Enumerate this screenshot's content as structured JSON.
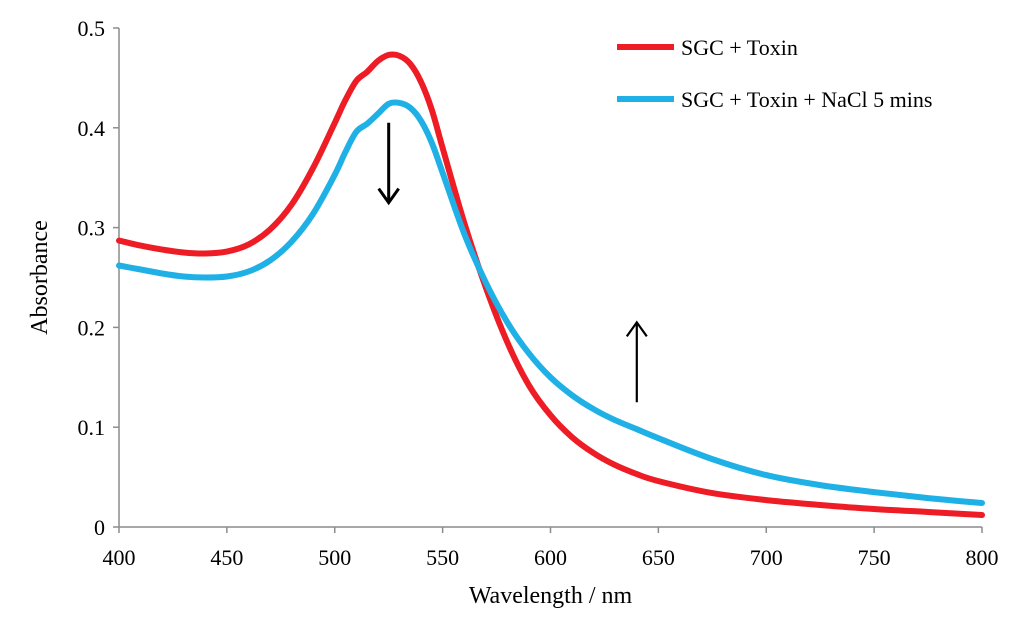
{
  "chart_data": {
    "type": "line",
    "title": "",
    "xlabel": "Wavelength / nm",
    "ylabel": "Absorbance",
    "xlim": [
      400,
      800
    ],
    "ylim": [
      0,
      0.5
    ],
    "xticks": [
      400,
      450,
      500,
      550,
      600,
      650,
      700,
      750,
      800
    ],
    "yticks": [
      0,
      0.1,
      0.2,
      0.3,
      0.4,
      0.5
    ],
    "xtick_labels": [
      "400",
      "450",
      "500",
      "550",
      "600",
      "650",
      "700",
      "750",
      "800"
    ],
    "ytick_labels": [
      "0",
      "0.1",
      "0.2",
      "0.3",
      "0.4",
      "0.5"
    ],
    "grid": false,
    "legend_position": "top-right",
    "series": [
      {
        "name": "SGC + Toxin",
        "color": "#ee1c25",
        "x": [
          400,
          410,
          420,
          430,
          440,
          450,
          460,
          470,
          480,
          490,
          500,
          505,
          510,
          515,
          520,
          525,
          530,
          535,
          540,
          545,
          550,
          560,
          570,
          580,
          590,
          600,
          610,
          620,
          630,
          640,
          650,
          675,
          700,
          725,
          750,
          775,
          800
        ],
        "y": [
          0.287,
          0.282,
          0.278,
          0.275,
          0.274,
          0.276,
          0.283,
          0.298,
          0.323,
          0.36,
          0.405,
          0.428,
          0.447,
          0.456,
          0.467,
          0.473,
          0.472,
          0.464,
          0.446,
          0.418,
          0.38,
          0.305,
          0.24,
          0.185,
          0.142,
          0.112,
          0.09,
          0.074,
          0.062,
          0.053,
          0.046,
          0.034,
          0.027,
          0.022,
          0.018,
          0.015,
          0.012
        ]
      },
      {
        "name": "SGC + Toxin + NaCl 5 mins",
        "color": "#1fb0e6",
        "x": [
          400,
          410,
          420,
          430,
          440,
          450,
          460,
          470,
          480,
          490,
          500,
          505,
          510,
          515,
          520,
          525,
          530,
          535,
          540,
          545,
          550,
          560,
          570,
          580,
          590,
          600,
          610,
          620,
          630,
          640,
          650,
          675,
          700,
          725,
          750,
          775,
          800
        ],
        "y": [
          0.262,
          0.258,
          0.254,
          0.251,
          0.25,
          0.251,
          0.256,
          0.267,
          0.286,
          0.314,
          0.353,
          0.376,
          0.396,
          0.404,
          0.414,
          0.424,
          0.425,
          0.42,
          0.407,
          0.385,
          0.355,
          0.294,
          0.245,
          0.205,
          0.174,
          0.15,
          0.132,
          0.118,
          0.107,
          0.098,
          0.089,
          0.068,
          0.052,
          0.042,
          0.035,
          0.029,
          0.024
        ]
      }
    ],
    "annotations": [
      {
        "type": "arrow",
        "direction": "down",
        "x": 525,
        "y_from": 0.405,
        "y_to": 0.325
      },
      {
        "type": "arrow",
        "direction": "up",
        "x": 640,
        "y_from": 0.125,
        "y_to": 0.205
      }
    ]
  }
}
